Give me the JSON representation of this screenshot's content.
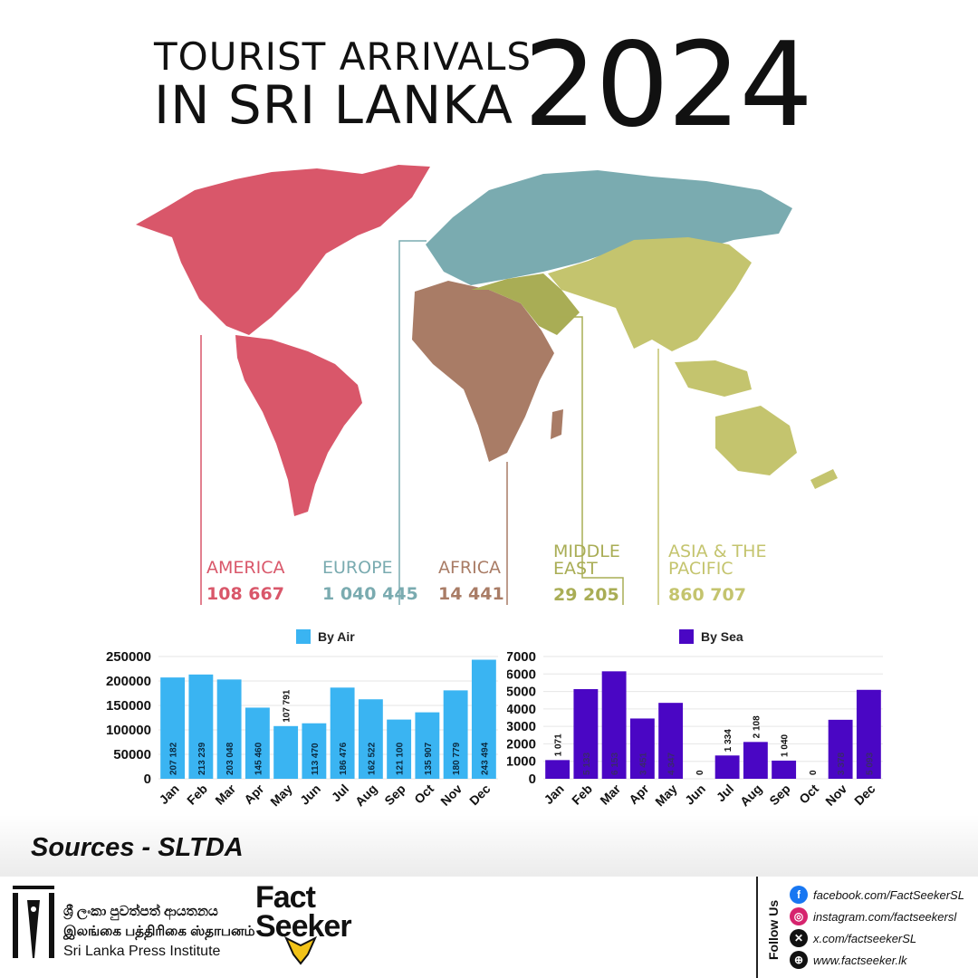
{
  "title": {
    "line1": "TOURIST ARRIVALS",
    "line2": "IN SRI LANKA",
    "year": "2024"
  },
  "regions": [
    {
      "name_line1": "AMERICA",
      "name_line2": "",
      "value": "108 667",
      "color": "#d9576a"
    },
    {
      "name_line1": "EUROPE",
      "name_line2": "",
      "value": "1 040 445",
      "color": "#7aabb0"
    },
    {
      "name_line1": "AFRICA",
      "name_line2": "",
      "value": "14 441",
      "color": "#a97c66"
    },
    {
      "name_line1": "MIDDLE",
      "name_line2": "EAST",
      "value": "29 205",
      "color": "#a9ad55"
    },
    {
      "name_line1": "ASIA & THE",
      "name_line2": "PACIFIC",
      "value": "860 707",
      "color": "#c4c46e"
    }
  ],
  "chart_data": [
    {
      "type": "bar",
      "legend": "By Air",
      "color": "#3ab4f2",
      "categories": [
        "Jan",
        "Feb",
        "Mar",
        "Apr",
        "May",
        "Jun",
        "Jul",
        "Aug",
        "Sep",
        "Oct",
        "Nov",
        "Dec"
      ],
      "values": [
        207182,
        213239,
        203048,
        145460,
        107791,
        113470,
        186476,
        162522,
        121100,
        135907,
        180779,
        243494
      ],
      "labels": [
        "207 182",
        "213 239",
        "203 048",
        "145 460",
        "107 791",
        "113 470",
        "186 476",
        "162 522",
        "121 100",
        "135 907",
        "180 779",
        "243 494"
      ],
      "yticks": [
        "0",
        "50000",
        "100000",
        "150000",
        "200000",
        "250000"
      ],
      "ylim": [
        0,
        250000
      ],
      "grid": true
    },
    {
      "type": "bar",
      "legend": "By Sea",
      "color": "#4a06c4",
      "categories": [
        "Jan",
        "Feb",
        "Mar",
        "Apr",
        "May",
        "Jun",
        "Jul",
        "Aug",
        "Sep",
        "Oct",
        "Nov",
        "Dec"
      ],
      "values": [
        1071,
        5133,
        6153,
        3451,
        4347,
        0,
        1334,
        2108,
        1040,
        0,
        3378,
        5093
      ],
      "labels": [
        "1 071",
        "5 133",
        "6 153",
        "3 451",
        "4 347",
        "0",
        "1 334",
        "2 108",
        "1 040",
        "0",
        "3 378",
        "5 093"
      ],
      "yticks": [
        "0",
        "1000",
        "2000",
        "3000",
        "4000",
        "5000",
        "6000",
        "7000"
      ],
      "ylim": [
        0,
        7000
      ],
      "grid": true
    }
  ],
  "sources": "Sources - SLTDA",
  "footer": {
    "spi_line1": "ශ්‍රී ලංකා පුවත්පත් ආයතනය",
    "spi_line2": "இலங்கை பத்திரிகை ஸ்தாபனம்",
    "spi_line3": "Sri Lanka Press Institute",
    "fs_line1": "Fact",
    "fs_line2": "Seeker",
    "follow_us": "Follow Us",
    "social": [
      {
        "icon": "facebook-icon",
        "text": "facebook.com/FactSeekerSL",
        "color": "#1877f2"
      },
      {
        "icon": "instagram-icon",
        "text": "instagram.com/factseekersl",
        "color": "#d6246e"
      },
      {
        "icon": "x-icon",
        "text": "x.com/factseekerSL",
        "color": "#111111"
      },
      {
        "icon": "globe-icon",
        "text": "www.factseeker.lk",
        "color": "#111111"
      }
    ]
  }
}
